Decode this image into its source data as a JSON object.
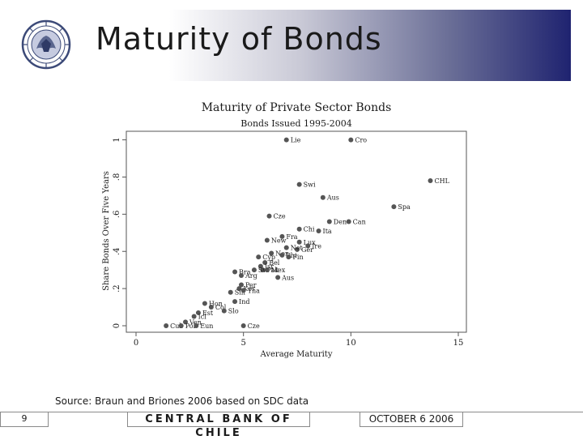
{
  "slide": {
    "title": "Maturity of Bonds",
    "source": "Source: Braun and Briones 2006 based on SDC data",
    "page_number": "9",
    "bank_name": "CENTRAL BANK OF CHILE",
    "date": "OCTOBER 6 2006"
  },
  "colors": {
    "band_dark": "#1f2370",
    "marker": "#555555",
    "text": "#1a1a1a"
  },
  "icons": {
    "seal": "central-bank-seal-icon"
  },
  "chart_data": {
    "type": "scatter",
    "title": "Maturity of Private Sector Bonds",
    "subtitle": "Bonds Issued 1995-2004",
    "xlabel": "Average Maturity",
    "ylabel": "Share Bonds Over Five Years",
    "xlim": [
      0,
      15
    ],
    "ylim": [
      0,
      1.02
    ],
    "xticks": [
      "0",
      "5",
      "10",
      "15"
    ],
    "yticks": [
      "0",
      ".2",
      ".4",
      ".6",
      ".8",
      "1"
    ],
    "xtick_values": [
      0,
      5,
      10,
      15
    ],
    "ytick_values": [
      0,
      0.2,
      0.4,
      0.6,
      0.8,
      1.0
    ],
    "grid": false,
    "points": [
      {
        "label": "Lie",
        "x": 7.0,
        "y": 1.0
      },
      {
        "label": "Cro",
        "x": 10.0,
        "y": 1.0
      },
      {
        "label": "CHL",
        "x": 13.7,
        "y": 0.78
      },
      {
        "label": "Swi",
        "x": 7.6,
        "y": 0.76
      },
      {
        "label": "Aus",
        "x": 8.7,
        "y": 0.69
      },
      {
        "label": "Spa",
        "x": 12.0,
        "y": 0.64
      },
      {
        "label": "Cze",
        "x": 6.2,
        "y": 0.59
      },
      {
        "label": "Den",
        "x": 9.0,
        "y": 0.56
      },
      {
        "label": "Can",
        "x": 9.9,
        "y": 0.56
      },
      {
        "label": "Chi",
        "x": 7.6,
        "y": 0.52
      },
      {
        "label": "Ita",
        "x": 8.5,
        "y": 0.51
      },
      {
        "label": "Fra",
        "x": 6.8,
        "y": 0.48
      },
      {
        "label": "New",
        "x": 6.1,
        "y": 0.46
      },
      {
        "label": "Lux",
        "x": 7.6,
        "y": 0.45
      },
      {
        "label": "Ire",
        "x": 8.0,
        "y": 0.43
      },
      {
        "label": "Ger",
        "x": 7.5,
        "y": 0.41
      },
      {
        "label": "Net",
        "x": 7.0,
        "y": 0.42
      },
      {
        "label": "Nor",
        "x": 6.3,
        "y": 0.39
      },
      {
        "label": "Phi",
        "x": 6.8,
        "y": 0.38
      },
      {
        "label": "Fin",
        "x": 7.1,
        "y": 0.37
      },
      {
        "label": "Cyp",
        "x": 5.7,
        "y": 0.37
      },
      {
        "label": "Bel",
        "x": 6.0,
        "y": 0.34
      },
      {
        "label": "Isr",
        "x": 5.8,
        "y": 0.32
      },
      {
        "label": "Pak",
        "x": 5.9,
        "y": 0.3
      },
      {
        "label": "Bra",
        "x": 4.6,
        "y": 0.29
      },
      {
        "label": "Sw",
        "x": 5.5,
        "y": 0.3
      },
      {
        "label": "Mex",
        "x": 6.1,
        "y": 0.3
      },
      {
        "label": "Arg",
        "x": 4.9,
        "y": 0.27
      },
      {
        "label": "Aus",
        "x": 6.6,
        "y": 0.26
      },
      {
        "label": "Per",
        "x": 4.9,
        "y": 0.22
      },
      {
        "label": "Kor",
        "x": 4.8,
        "y": 0.2
      },
      {
        "label": "Sin",
        "x": 4.4,
        "y": 0.18
      },
      {
        "label": "Tha",
        "x": 5.0,
        "y": 0.19
      },
      {
        "label": "Ind",
        "x": 4.6,
        "y": 0.13
      },
      {
        "label": "Hon",
        "x": 3.2,
        "y": 0.12
      },
      {
        "label": "Col",
        "x": 3.5,
        "y": 0.1
      },
      {
        "label": "Slo",
        "x": 4.1,
        "y": 0.08
      },
      {
        "label": "Est",
        "x": 2.9,
        "y": 0.07
      },
      {
        "label": "Icl",
        "x": 2.7,
        "y": 0.05
      },
      {
        "label": "Ven",
        "x": 2.3,
        "y": 0.02
      },
      {
        "label": "Cub",
        "x": 1.4,
        "y": 0.0
      },
      {
        "label": "Pol",
        "x": 2.1,
        "y": 0.0
      },
      {
        "label": "Eun",
        "x": 2.8,
        "y": 0.0
      },
      {
        "label": "Cze",
        "x": 5.0,
        "y": 0.0
      }
    ]
  }
}
